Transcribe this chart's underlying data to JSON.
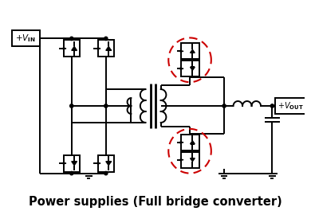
{
  "title": "Power supplies (Full bridge converter)",
  "bg_color": "#ffffff",
  "line_color": "#000000",
  "circle_color": "#cc0000",
  "title_fontsize": 10.5,
  "lw": 1.4
}
